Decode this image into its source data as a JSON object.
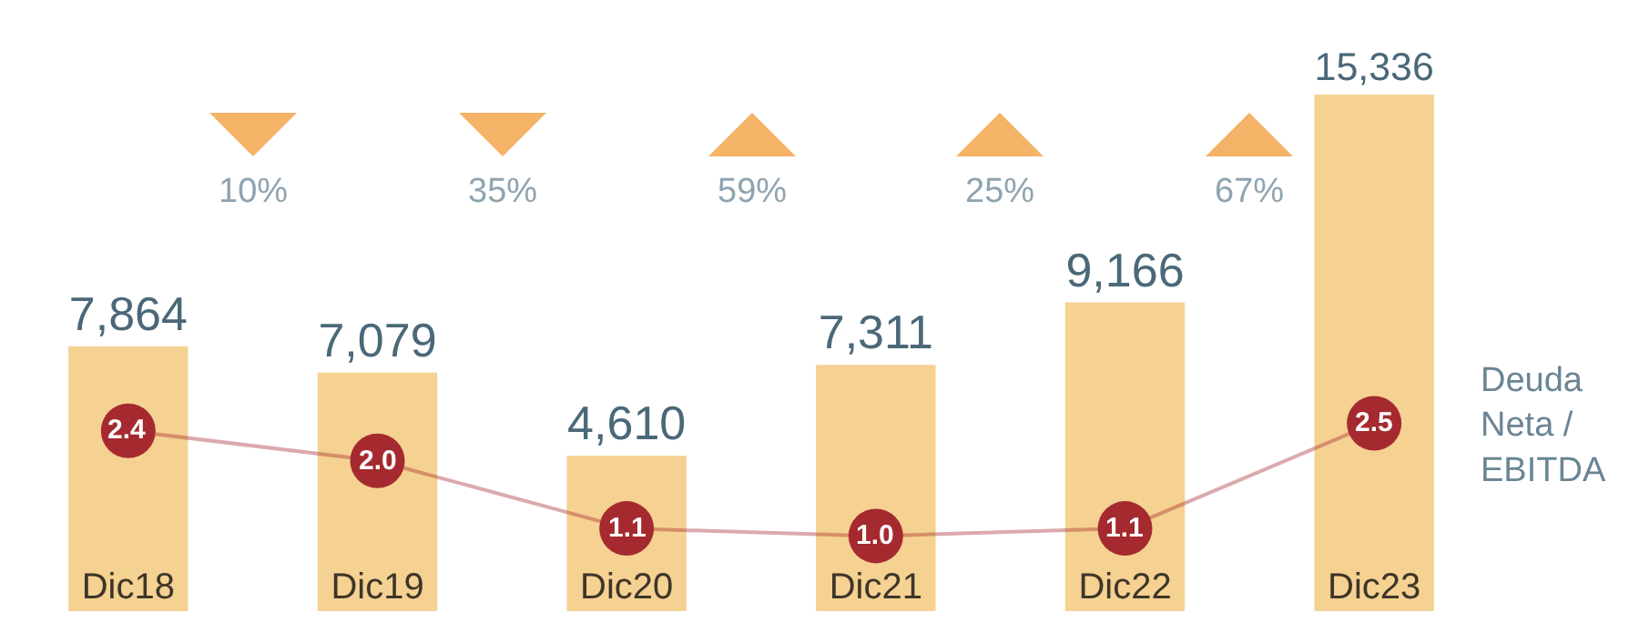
{
  "chart_data": {
    "type": "bar",
    "categories": [
      "Dic18",
      "Dic19",
      "Dic20",
      "Dic21",
      "Dic22",
      "Dic23"
    ],
    "series": [
      {
        "color": "#f5d192",
        "values": [
          7864,
          7079,
          4610,
          7311,
          9166,
          15336
        ],
        "value_labels": [
          "7,864",
          "7,079",
          "4,610",
          "7,311",
          "9,166",
          "15,336"
        ]
      },
      {
        "type": "line",
        "name": "Deuda Neta / EBITDA",
        "axis": "y2",
        "color": "#a52a2f",
        "values": [
          2.4,
          2.0,
          1.1,
          1.0,
          1.1,
          2.5
        ],
        "value_labels": [
          "2.4",
          "2.0",
          "1.1",
          "1.0",
          "1.1",
          "2.5"
        ]
      }
    ],
    "annotations": [
      "10%",
      "35%",
      "59%",
      "25%",
      "67%"
    ],
    "marker": "circle"
  }
}
